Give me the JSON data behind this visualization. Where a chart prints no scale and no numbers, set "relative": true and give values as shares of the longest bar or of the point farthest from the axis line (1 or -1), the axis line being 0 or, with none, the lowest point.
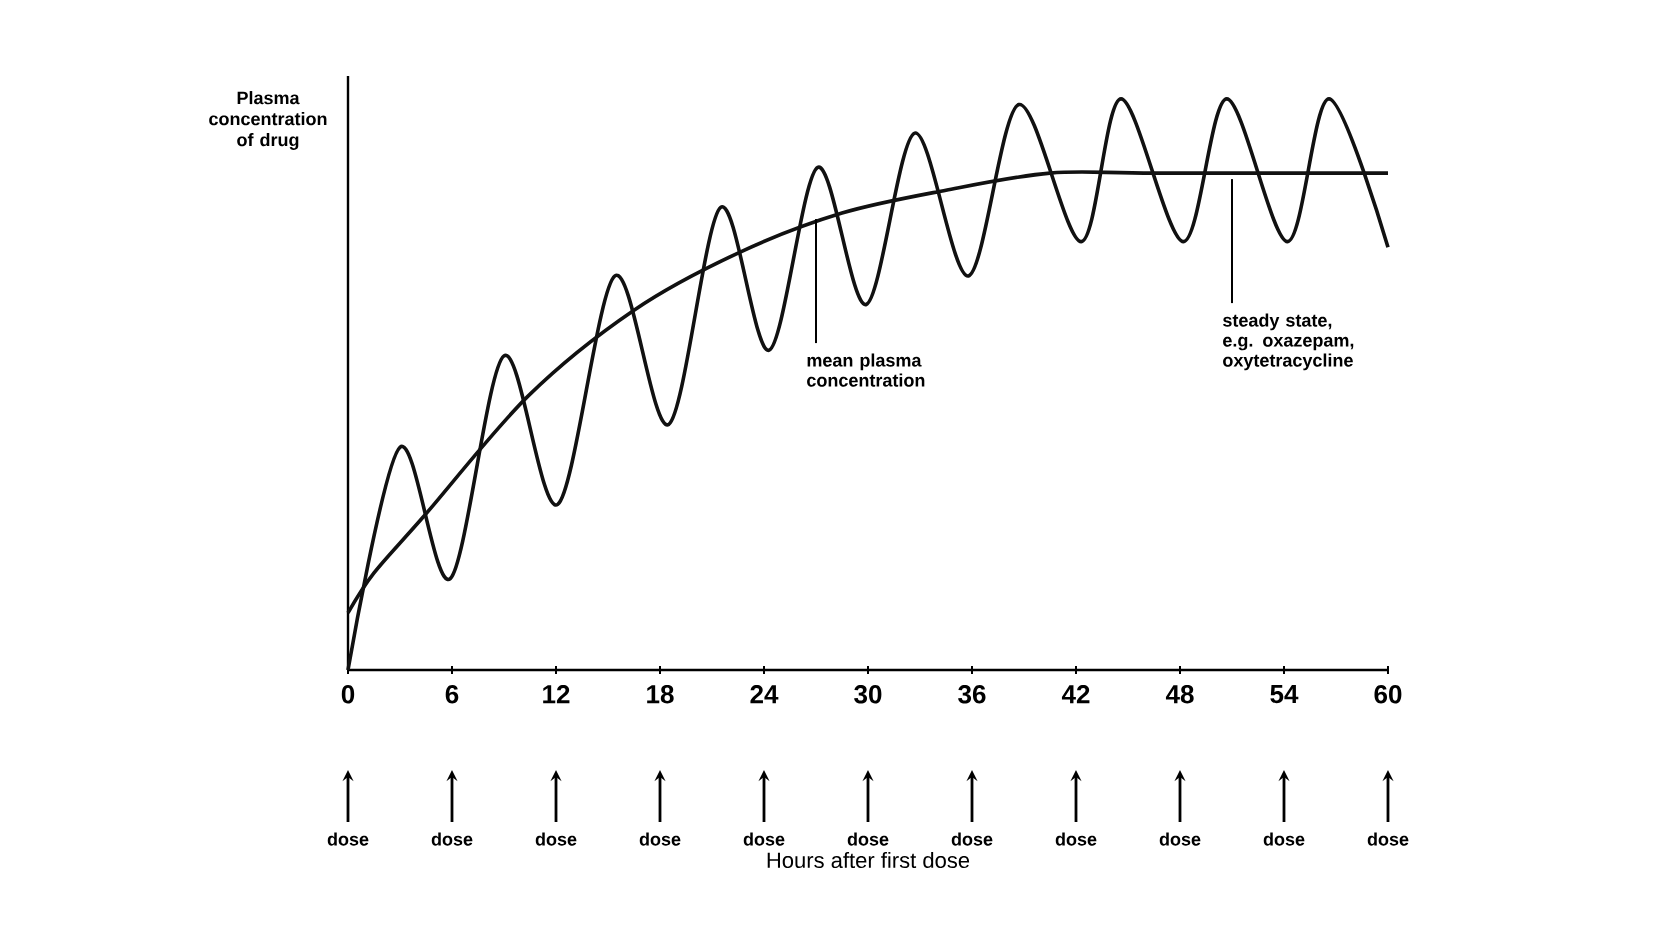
{
  "chart_data": {
    "type": "line",
    "relative": true,
    "ylabel": "Plasma concentration of drug",
    "xlim": [
      0,
      60
    ],
    "xticks": [
      0,
      6,
      12,
      18,
      24,
      30,
      36,
      42,
      48,
      54,
      60
    ],
    "series": [
      {
        "color": "#111111",
        "x": [
          0,
          3.0,
          5.9,
          9.0,
          12.1,
          15.4,
          18.5,
          21.5,
          24.3,
          27.1,
          29.9,
          32.7,
          35.8,
          38.7,
          42.3,
          44.6,
          48.2,
          50.7,
          54.2,
          56.6,
          60
        ],
        "values": [
          0,
          0.39,
          0.16,
          0.55,
          0.29,
          0.69,
          0.43,
          0.81,
          0.56,
          0.88,
          0.64,
          0.94,
          0.69,
          0.99,
          0.75,
          1.0,
          0.75,
          1.0,
          0.75,
          1.0,
          0.74
        ]
      },
      {
        "color": "#111111",
        "x": [
          0,
          1.5,
          4.4,
          10.4,
          16.5,
          22.5,
          28.5,
          34.5,
          40.5,
          46.5,
          60
        ],
        "values": [
          0.1,
          0.17,
          0.27,
          0.48,
          0.63,
          0.73,
          0.8,
          0.84,
          0.87,
          0.87,
          0.87
        ]
      }
    ],
    "annotations": [
      {
        "text": "mean plasma concentration",
        "x": 27,
        "y": 0.8
      },
      {
        "text": "steady state, e.g. oxazepam, oxytetracycline",
        "x": 51,
        "y": 0.87
      },
      "dose",
      "dose",
      "dose",
      "dose",
      "dose",
      "dose",
      "dose",
      "dose",
      "dose",
      "dose",
      "dose",
      "Hours after first dose"
    ]
  }
}
